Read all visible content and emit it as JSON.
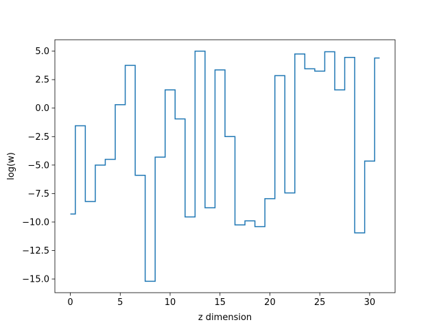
{
  "chart_data": {
    "type": "line",
    "drawstyle": "steps-mid",
    "title": "",
    "xlabel": "z dimension",
    "ylabel": "log(w)",
    "xlim": [
      -1.55,
      32.55
    ],
    "ylim": [
      -16.2,
      6.0
    ],
    "xticks": [
      0,
      5,
      10,
      15,
      20,
      25,
      30
    ],
    "yticks": [
      5.0,
      2.5,
      0.0,
      -2.5,
      -5.0,
      -7.5,
      -10.0,
      -12.5,
      -15.0
    ],
    "xtick_labels": [
      "0",
      "5",
      "10",
      "15",
      "20",
      "25",
      "30"
    ],
    "ytick_labels": [
      "5.0",
      "2.5",
      "0.0",
      "−2.5",
      "−5.0",
      "−7.5",
      "−10.0",
      "−12.5",
      "−15.0"
    ],
    "grid": false,
    "color": "#1f77b4",
    "series": [
      {
        "x": [
          0,
          1,
          2,
          3,
          4,
          5,
          6,
          7,
          8,
          9,
          10,
          11,
          12,
          13,
          14,
          15,
          16,
          17,
          18,
          19,
          20,
          21,
          22,
          23,
          24,
          25,
          26,
          27,
          28,
          29,
          30,
          31
        ],
        "values": [
          -9.3,
          -1.55,
          -8.2,
          -5.0,
          -4.5,
          0.3,
          3.75,
          -5.9,
          -15.2,
          -4.3,
          1.6,
          -0.95,
          -9.55,
          5.0,
          -8.75,
          3.35,
          -2.5,
          -10.25,
          -9.9,
          -10.4,
          -7.95,
          2.85,
          -7.45,
          4.75,
          3.45,
          3.25,
          4.95,
          1.6,
          4.45,
          -10.95,
          -4.65,
          4.4
        ]
      }
    ]
  }
}
